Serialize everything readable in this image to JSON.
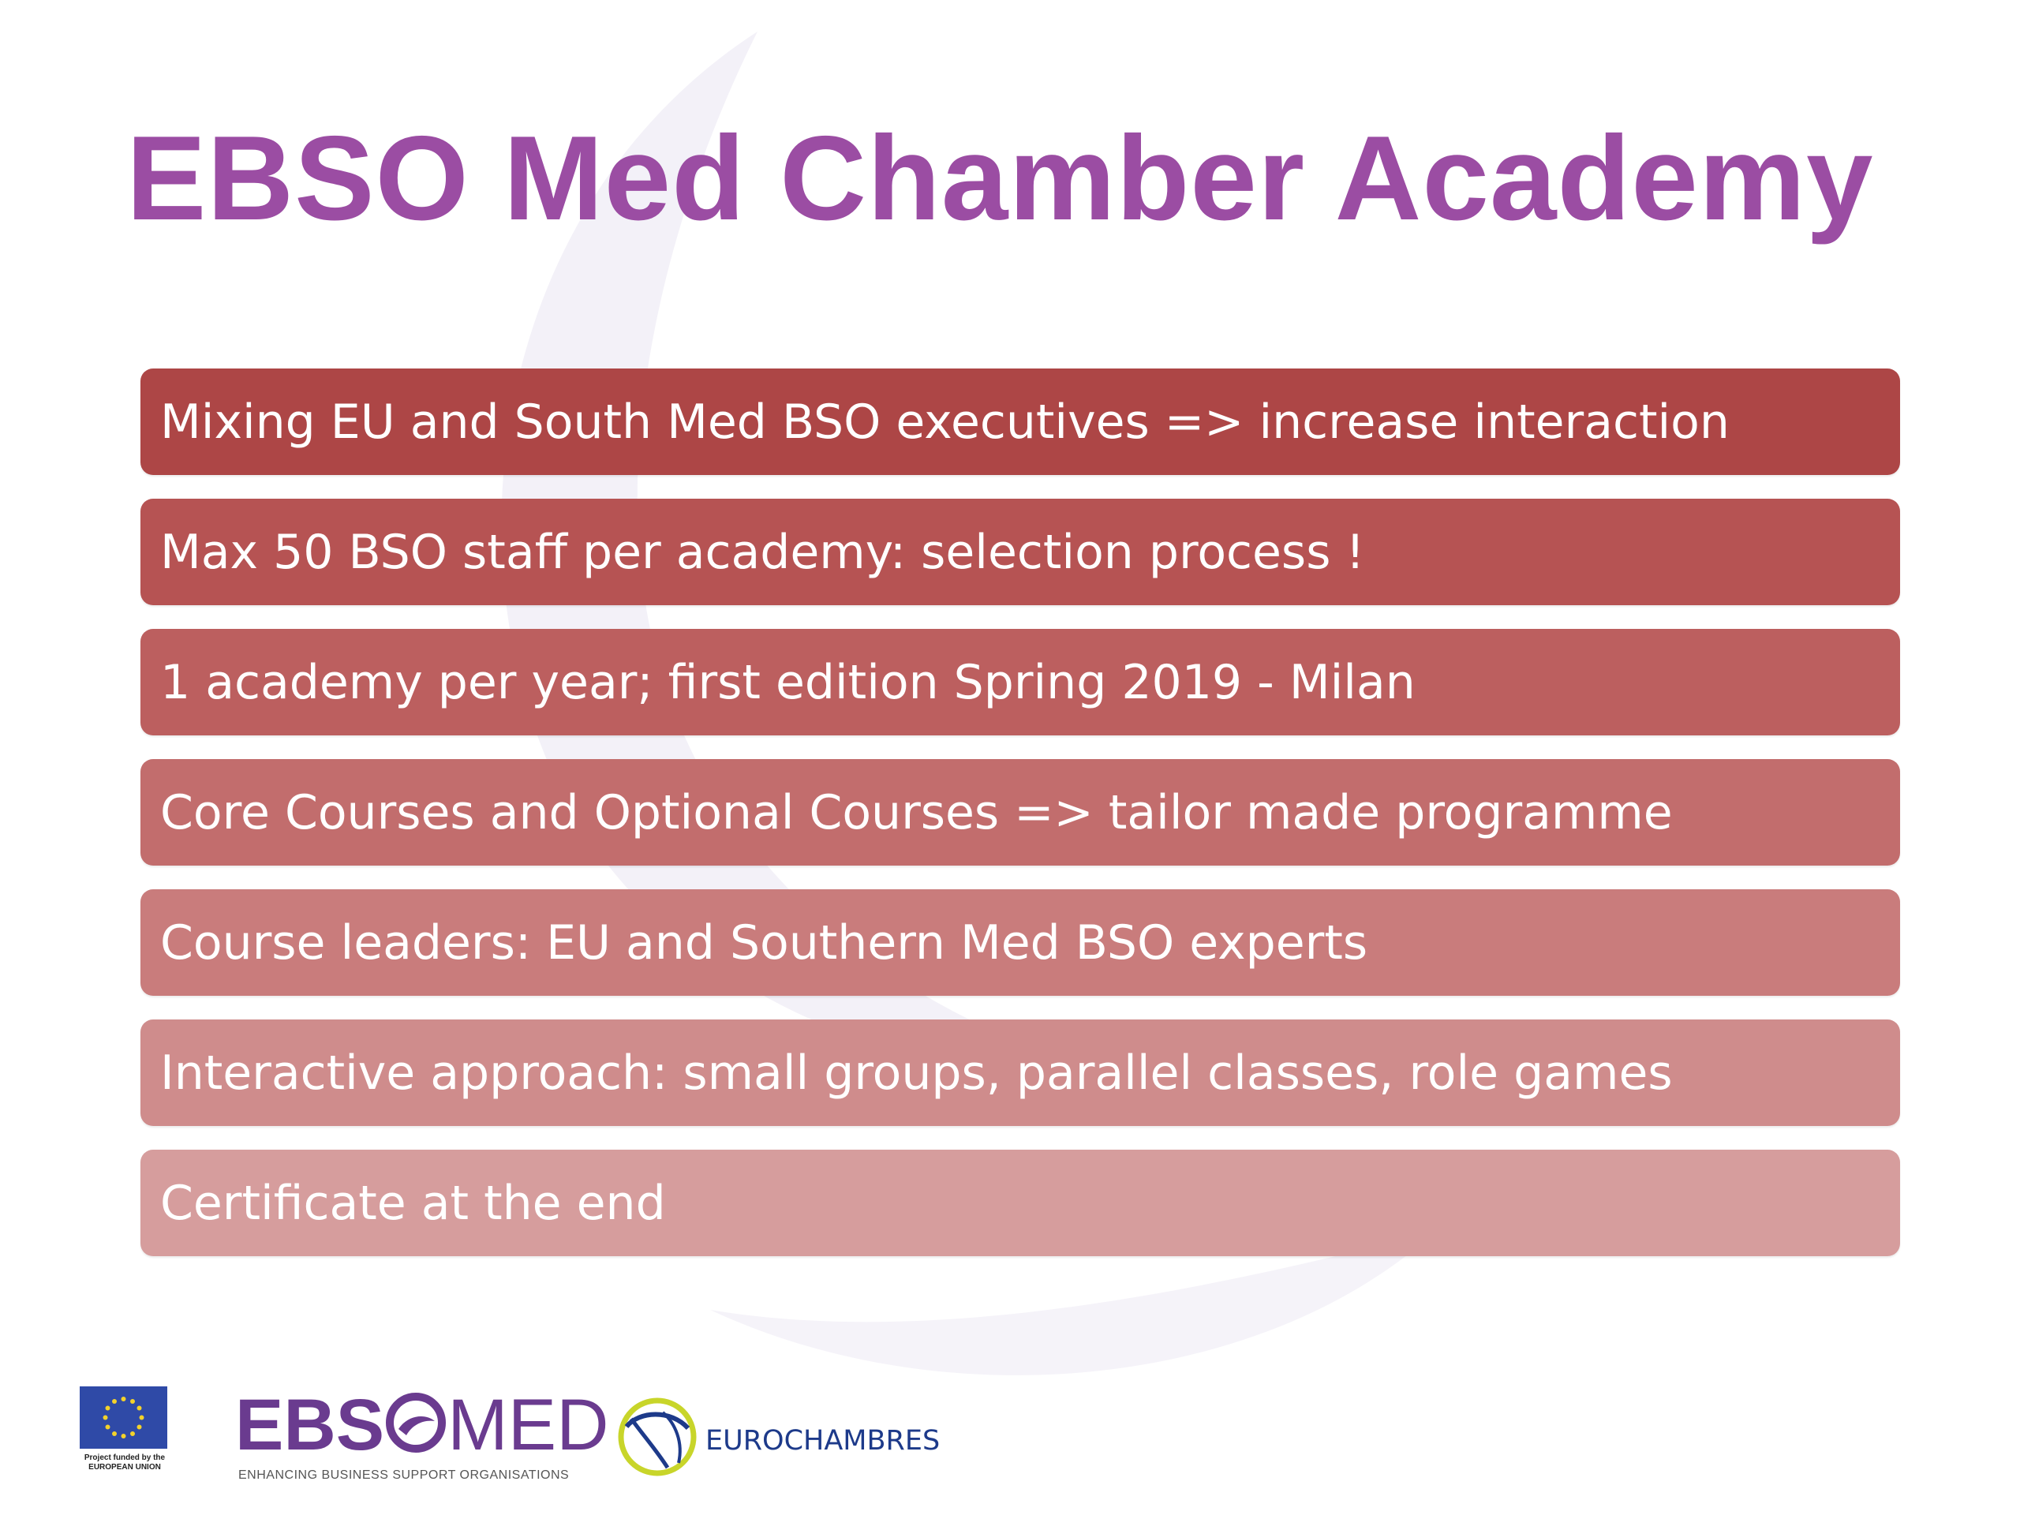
{
  "slide": {
    "title": "EBSO Med Chamber Academy",
    "title_color": "#9b4da3",
    "items": [
      {
        "text": "Mixing EU and South Med BSO executives => increase interaction",
        "color": "#ad4646"
      },
      {
        "text": "Max 50 BSO staff per academy: selection process !",
        "color": "#b65353"
      },
      {
        "text": "1 academy per year; first edition Spring 2019 - Milan",
        "color": "#bc5f5f"
      },
      {
        "text": "Core Courses and Optional Courses => tailor made programme",
        "color": "#c26d6d"
      },
      {
        "text": "Course leaders: EU and Southern Med BSO experts",
        "color": "#c97c7c"
      },
      {
        "text": "Interactive approach: small groups, parallel classes, role games",
        "color": "#cf8c8c"
      },
      {
        "text": "Certificate at the end",
        "color": "#d69d9d"
      }
    ]
  },
  "footer": {
    "eu_logo": {
      "icon": "eu-flag-icon",
      "caption_line1": "Project funded by the",
      "caption_line2": "EUROPEAN UNION"
    },
    "ebsomed_logo": {
      "part1": "EBS",
      "part2": "MED",
      "tagline": "ENHANCING BUSINESS SUPPORT ORGANISATIONS",
      "color": "#6a3b8f"
    },
    "eurochambres_logo": {
      "icon": "eurochambres-swirl-icon",
      "text": "EUROCHAMBRES",
      "color": "#1d3a8a"
    }
  }
}
